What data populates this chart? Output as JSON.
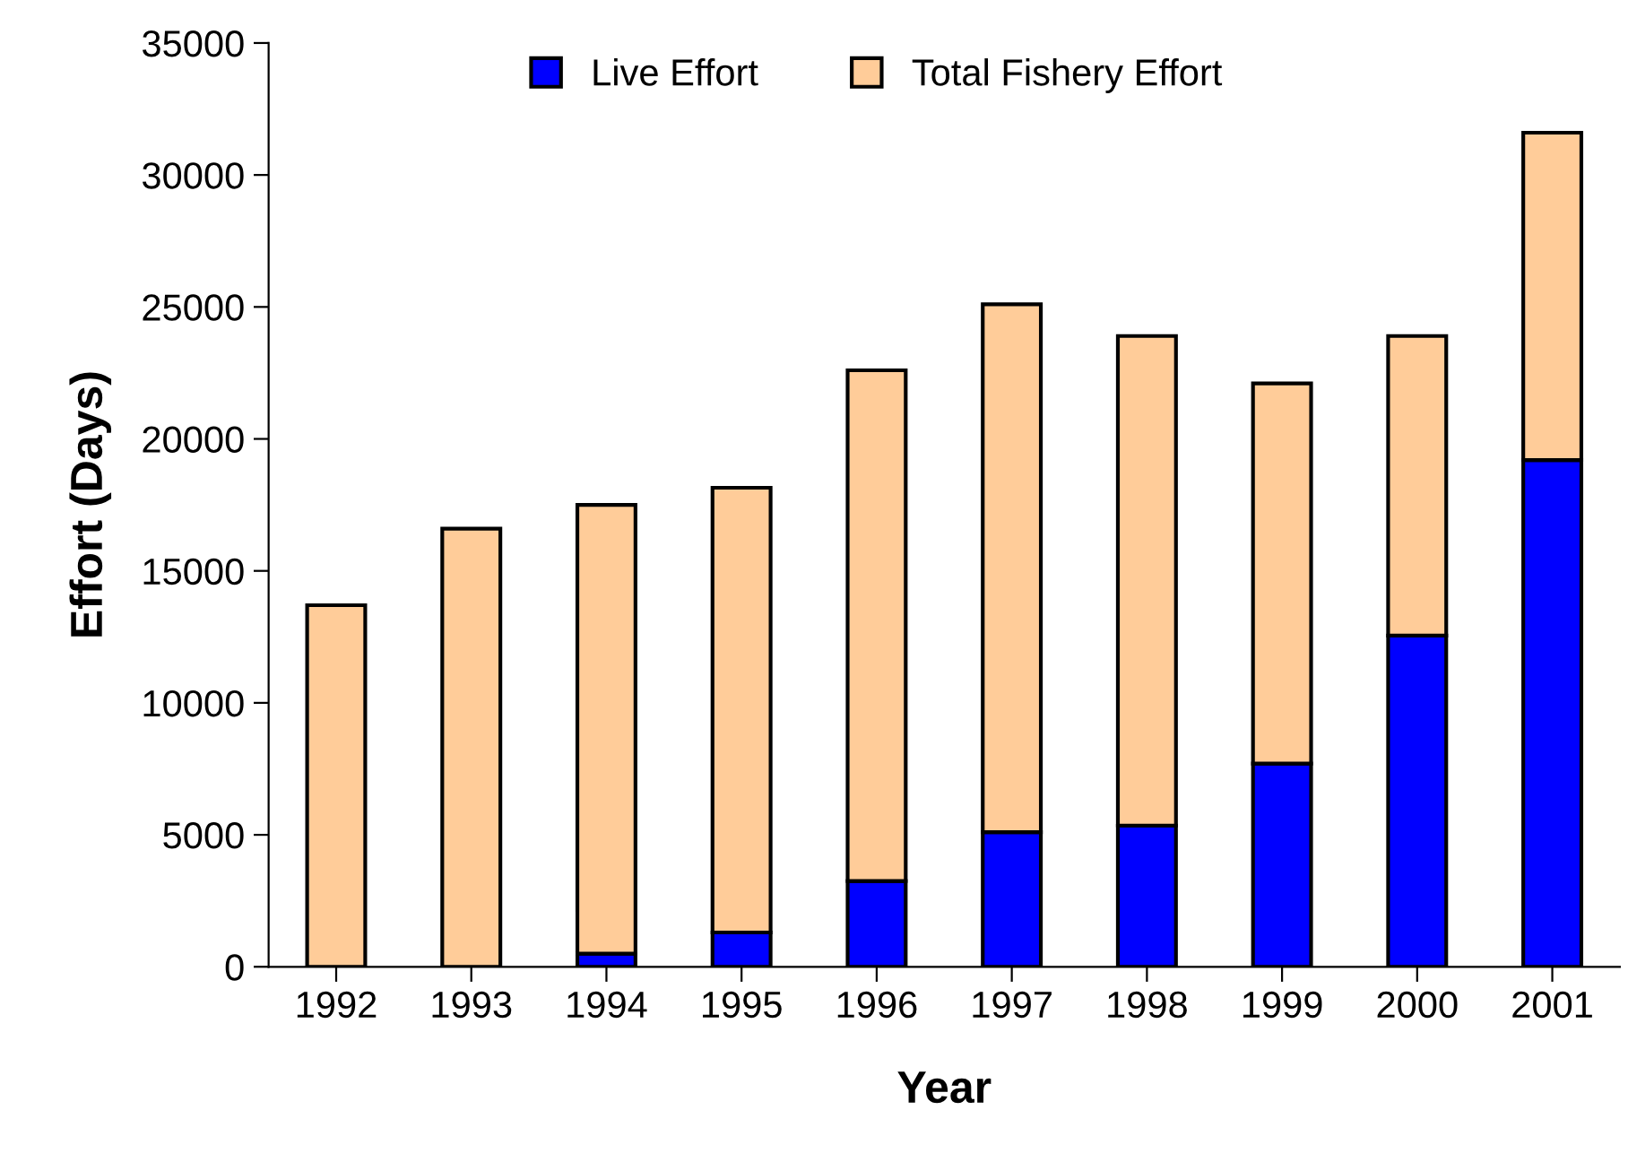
{
  "chart_data": {
    "type": "bar",
    "stacked": true,
    "xlabel": "Year",
    "ylabel": "Effort (Days)",
    "categories": [
      "1992",
      "1993",
      "1994",
      "1995",
      "1996",
      "1997",
      "1998",
      "1999",
      "2000",
      "2001"
    ],
    "series": [
      {
        "name": "Live Effort",
        "color": "#0000ff",
        "values": [
          0,
          0,
          500,
          1300,
          3250,
          5100,
          5350,
          7700,
          12550,
          19200
        ]
      },
      {
        "name": "Total Fishery Effort",
        "color": "#ffcc99",
        "values": [
          13700,
          16600,
          17000,
          16850,
          19350,
          20000,
          18550,
          14400,
          11350,
          12400
        ]
      }
    ],
    "ylim": [
      0,
      35000
    ],
    "yticks": [
      0,
      5000,
      10000,
      15000,
      20000,
      25000,
      30000,
      35000
    ],
    "legend": "top",
    "grid": false
  }
}
